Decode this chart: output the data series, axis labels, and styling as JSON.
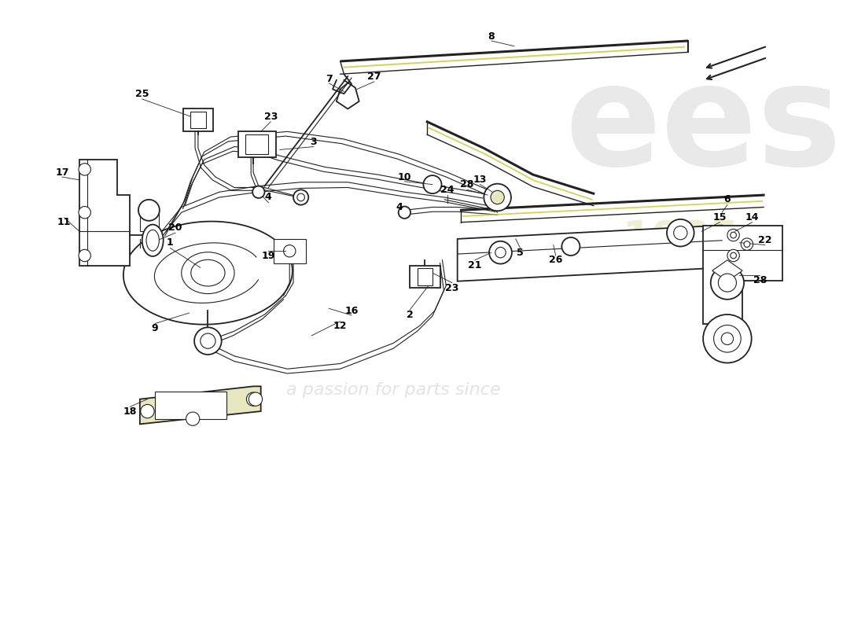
{
  "bg_color": "#ffffff",
  "line_color": "#222222",
  "label_color": "#000000",
  "lw_main": 1.3,
  "lw_thin": 0.8,
  "lw_thick": 2.2,
  "label_fs": 9,
  "watermark_ees_color": "#d0d0d0",
  "watermark_1985_color": "#e8e8c0",
  "watermark_text_color": "#cccccc",
  "yellow_highlight": "#c8c830",
  "light_fill": "#f8f8f8"
}
